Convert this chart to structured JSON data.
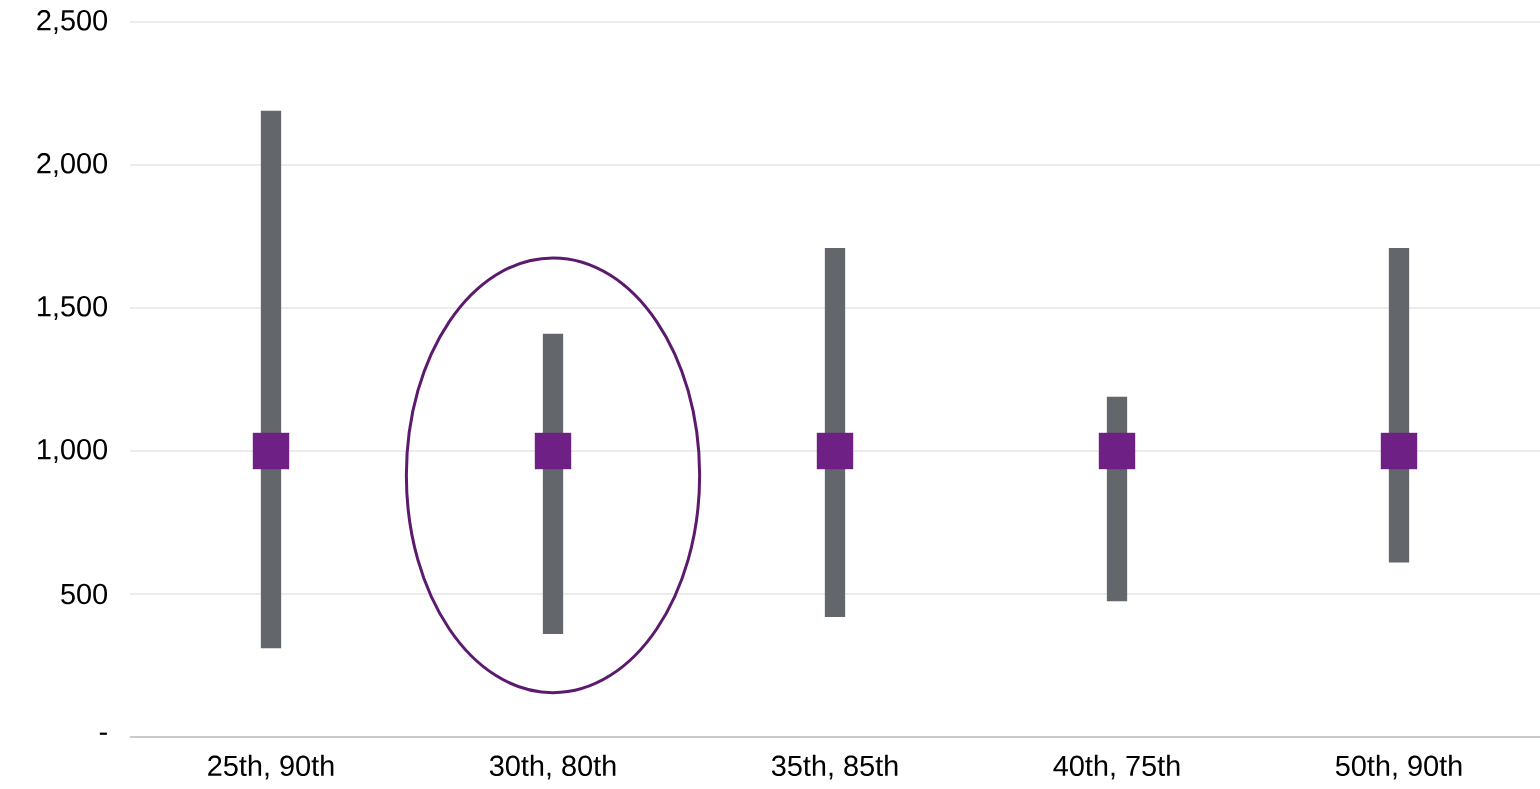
{
  "chart_data": {
    "type": "bar",
    "categories": [
      "25th, 90th",
      "30th, 80th",
      "35th, 85th",
      "40th, 75th",
      "50th, 90th"
    ],
    "series": [
      {
        "color": "#63666a",
        "base": [
          310,
          360,
          420,
          475,
          610
        ],
        "values": [
          1880,
          1050,
          1290,
          715,
          1100
        ]
      },
      {
        "type": "scatter",
        "color": "#6f2085",
        "marker": "square",
        "x": [
          "25th, 90th",
          "30th, 80th",
          "35th, 85th",
          "40th, 75th",
          "50th, 90th"
        ],
        "values": [
          1000,
          1000,
          1000,
          1000,
          1000
        ]
      }
    ],
    "ylim": [
      0,
      2500
    ],
    "yticks": [
      {
        "value": 0,
        "label": "-"
      },
      {
        "value": 500,
        "label": "500"
      },
      {
        "value": 1000,
        "label": "1,000"
      },
      {
        "value": 1500,
        "label": "1,500"
      },
      {
        "value": 2000,
        "label": "2,000"
      },
      {
        "value": 2500,
        "label": "2,500"
      }
    ],
    "grid": "y"
  }
}
